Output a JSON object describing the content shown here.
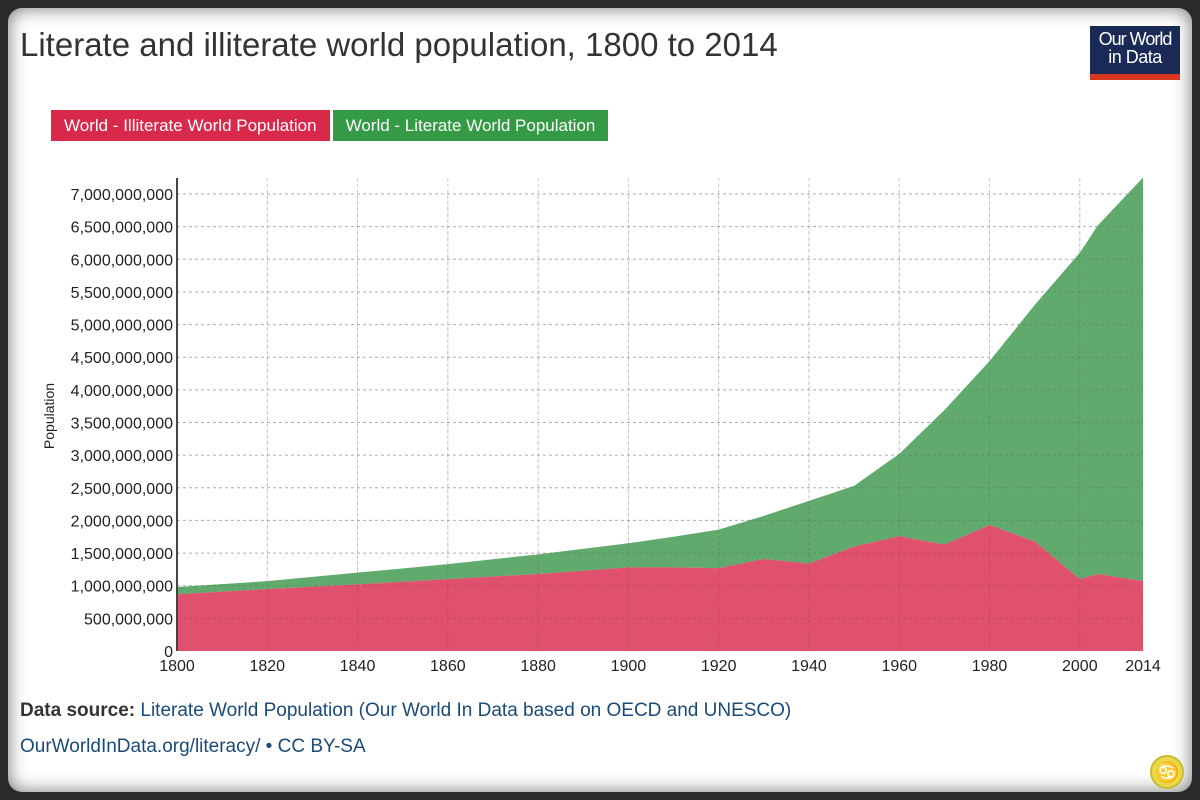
{
  "header": {
    "title": "Literate and illiterate world population, 1800 to 2014",
    "logo_line1": "Our World",
    "logo_line2": "in Data"
  },
  "footer": {
    "source_label": "Data source:",
    "source_text": "Literate World Population (Our World In Data based on OECD and UNESCO)",
    "url_text": "OurWorldInData.org/literacy/",
    "license_text": " • CC BY-SA"
  },
  "badge_icon": "cc-license-icon",
  "colors": {
    "illiterate": "#e0516e",
    "literate": "#5faa6c",
    "legend_illiterate": "#d9294b",
    "legend_literate": "#359a45"
  },
  "chart_data": {
    "type": "area",
    "stacked": true,
    "title": "Literate and illiterate world population, 1800 to 2014",
    "xlabel": "",
    "ylabel": "Population",
    "xlim": [
      1800,
      2014
    ],
    "ylim": [
      0,
      7000000000
    ],
    "x_ticks": [
      "1800",
      "1820",
      "1840",
      "1860",
      "1880",
      "1900",
      "1920",
      "1940",
      "1960",
      "1980",
      "2000",
      "2014"
    ],
    "y_ticks": [
      "0",
      "500,000,000",
      "1,000,000,000",
      "1,500,000,000",
      "2,000,000,000",
      "2,500,000,000",
      "3,000,000,000",
      "3,500,000,000",
      "4,000,000,000",
      "4,500,000,000",
      "5,000,000,000",
      "5,500,000,000",
      "6,000,000,000",
      "6,500,000,000",
      "7,000,000,000"
    ],
    "grid": true,
    "legend_position": "top-left",
    "x": [
      1800,
      1820,
      1840,
      1860,
      1880,
      1900,
      1910,
      1920,
      1930,
      1940,
      1950,
      1960,
      1970,
      1980,
      1990,
      2000,
      2004,
      2014
    ],
    "series": [
      {
        "name": "World - Illiterate World Population",
        "values": [
          870000000,
          950000000,
          1020000000,
          1100000000,
          1180000000,
          1280000000,
          1280000000,
          1270000000,
          1410000000,
          1340000000,
          1600000000,
          1760000000,
          1630000000,
          1930000000,
          1680000000,
          1100000000,
          1180000000,
          1070000000
        ]
      },
      {
        "name": "World - Literate World Population",
        "values": [
          110000000,
          120000000,
          180000000,
          230000000,
          300000000,
          370000000,
          470000000,
          590000000,
          660000000,
          960000000,
          930000000,
          1260000000,
          2060000000,
          2510000000,
          3620000000,
          5000000000,
          5340000000,
          6180000000
        ]
      }
    ]
  }
}
